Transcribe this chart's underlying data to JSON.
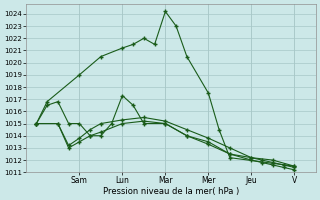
{
  "background_color": "#cce8e8",
  "grid_color_major": "#a8c8c8",
  "grid_color_minor": "#b8d8d8",
  "line_color": "#1a5c1a",
  "xlabel": "Pression niveau de la mer( hPa )",
  "ylim": [
    1011,
    1024.8
  ],
  "ytick_min": 1011,
  "ytick_max": 1024,
  "day_labels": [
    "Sam",
    "Lun",
    "Mar",
    "Mer",
    "Jeu",
    "V"
  ],
  "day_positions": [
    3,
    5,
    7,
    9,
    11,
    13
  ],
  "xlim": [
    0.5,
    14
  ],
  "series": [
    {
      "x": [
        1,
        1.5,
        3,
        4,
        5,
        5.5,
        6,
        6.5,
        7,
        7.5,
        8,
        9,
        9.5,
        10,
        13
      ],
      "y": [
        1015.0,
        1016.8,
        1019.0,
        1020.5,
        1021.2,
        1021.5,
        1022.0,
        1021.5,
        1024.2,
        1023.0,
        1020.5,
        1017.5,
        1014.5,
        1012.2,
        1011.5
      ]
    },
    {
      "x": [
        1,
        2,
        2.5,
        3,
        3.5,
        4,
        5,
        6,
        7,
        8,
        9,
        10,
        11,
        11.5,
        12,
        12.5,
        13
      ],
      "y": [
        1015.0,
        1015.0,
        1013.2,
        1013.8,
        1014.5,
        1015.0,
        1015.3,
        1015.5,
        1015.2,
        1014.5,
        1013.8,
        1013.0,
        1012.2,
        1012.0,
        1011.8,
        1011.6,
        1011.4
      ]
    },
    {
      "x": [
        1,
        2,
        2.5,
        3,
        3.5,
        4,
        5,
        6,
        7,
        8,
        9,
        10,
        11,
        11.5,
        12,
        12.5,
        13
      ],
      "y": [
        1015.0,
        1015.0,
        1013.0,
        1013.5,
        1014.0,
        1014.3,
        1015.0,
        1015.2,
        1015.0,
        1014.0,
        1013.3,
        1012.5,
        1012.0,
        1011.8,
        1011.6,
        1011.4,
        1011.2
      ]
    },
    {
      "x": [
        1,
        1.5,
        2,
        2.5,
        3,
        3.5,
        4,
        4.5,
        5,
        5.5,
        6,
        7,
        8,
        9,
        10,
        11,
        12,
        13
      ],
      "y": [
        1015.0,
        1016.5,
        1016.8,
        1015.0,
        1015.0,
        1014.0,
        1014.0,
        1015.0,
        1017.3,
        1016.5,
        1015.0,
        1015.0,
        1014.0,
        1013.5,
        1012.5,
        1012.2,
        1012.0,
        1011.5
      ]
    }
  ]
}
